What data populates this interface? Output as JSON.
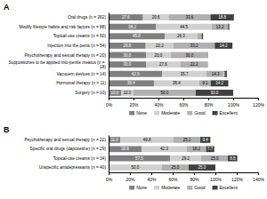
{
  "chart_data": [
    {
      "type": "bar",
      "title": "A",
      "orientation": "horizontal",
      "stacked": true,
      "data_labels": true,
      "legend": "bottom",
      "grid": false,
      "categories": [
        "Oral drugs (n = 262)",
        "Modify lifestyle habits and risk factors (n = 88)",
        "Topical-use creams (n = 60)",
        "Injection into the penis (n = 54)",
        "Psychotherapy and sexual therapy (n = 20)",
        "Suppositories to be applied into-penile meatus (n = 18)",
        "Vacuuem devices (n = 14)",
        "Hormonal therapy (n = 11)",
        "Surgery (n = 10)"
      ],
      "series": [
        {
          "name": "None",
          "color": "#7f7f7f",
          "values": [
            27.6,
            38.2,
            45.0,
            29.8,
            30.0,
            30.0,
            42.9,
            36.4,
            10.0
          ],
          "value_labels": [
            "27.6",
            "38.2",
            "45.0",
            "29.8",
            "30.0",
            "30.0",
            "42.9",
            "36.4",
            "10.0"
          ]
        },
        {
          "name": "Moderate",
          "color": "#d0d0d0",
          "values": [
            20.6,
            44.5,
            26.3,
            22.2,
            20.0,
            27.6,
            35.7,
            36.4,
            10.0
          ],
          "value_labels": [
            "20.6",
            "44.5",
            "26.3",
            "22.2",
            "20.0",
            "27.6",
            "35.7",
            "36.4",
            "10.0"
          ]
        },
        {
          "name": "Good",
          "color": "#b0b0b0",
          "values": [
            33.6,
            13.2,
            3.5,
            33.2,
            30.0,
            22.2,
            14.3,
            9.1,
            50.0
          ],
          "value_labels": [
            "33.6",
            "13.2",
            null,
            "33.2",
            "30.0",
            "22.2",
            "14.3",
            "9.1",
            "50.0"
          ]
        },
        {
          "name": "Excellent",
          "color": "#3f3f3f",
          "values": [
            18.8,
            1.0,
            1.0,
            14.2,
            0.0,
            0.0,
            2.1,
            14.2,
            30.0
          ],
          "value_labels": [
            "18.8",
            null,
            null,
            "14.2",
            null,
            null,
            "2.1",
            "14.2",
            "30.0"
          ]
        }
      ],
      "xlim": [
        0,
        120
      ],
      "xticks": [
        {
          "value": 0,
          "label": "0%"
        },
        {
          "value": 20,
          "label": "20%"
        },
        {
          "value": 40,
          "label": "40%"
        },
        {
          "value": 60,
          "label": "60%"
        },
        {
          "value": 80,
          "label": "80%"
        },
        {
          "value": 100,
          "label": "100%"
        },
        {
          "value": 120,
          "label": "120%"
        }
      ]
    },
    {
      "type": "bar",
      "title": "B",
      "orientation": "horizontal",
      "stacked": true,
      "data_labels": true,
      "legend": "bottom",
      "grid": false,
      "categories": [
        "Psychotherapy and sexual therapy (n = 22)",
        "Specific oral drugs (dapoxetine) (n = 29)",
        "Topical-use creams (n = 34)",
        "Unspecific antidepressants (n = 40)"
      ],
      "series": [
        {
          "name": "None",
          "color": "#7f7f7f",
          "values": [
            11.0,
            30.8,
            57.5,
            0.0
          ],
          "value_labels": [
            "11.0",
            "30.8",
            "57.5",
            null
          ]
        },
        {
          "name": "Moderate",
          "color": "#d0d0d0",
          "values": [
            49.8,
            42.3,
            29.2,
            50.0
          ],
          "value_labels": [
            "49.8",
            "42.3",
            "29.2",
            "50.0"
          ]
        },
        {
          "name": "Good",
          "color": "#b0b0b0",
          "values": [
            25.1,
            18.2,
            25.0,
            25.0
          ],
          "value_labels": [
            "25.1",
            "18.2",
            "25.0",
            "25.0"
          ]
        },
        {
          "name": "Excellent",
          "color": "#3f3f3f",
          "values": [
            9.4,
            7.7,
            8.8,
            25.0
          ],
          "value_labels": [
            "9.4",
            "7.7",
            "8.8",
            "25.0"
          ]
        }
      ],
      "xlim": [
        0,
        140
      ],
      "xticks": [
        {
          "value": 0,
          "label": "0%"
        },
        {
          "value": 20,
          "label": "20%"
        },
        {
          "value": 40,
          "label": "40%"
        },
        {
          "value": 60,
          "label": "60%"
        },
        {
          "value": 80,
          "label": "80%"
        },
        {
          "value": 100,
          "label": "100%"
        },
        {
          "value": 120,
          "label": "120%"
        },
        {
          "value": 140,
          "label": "140%"
        }
      ]
    }
  ]
}
